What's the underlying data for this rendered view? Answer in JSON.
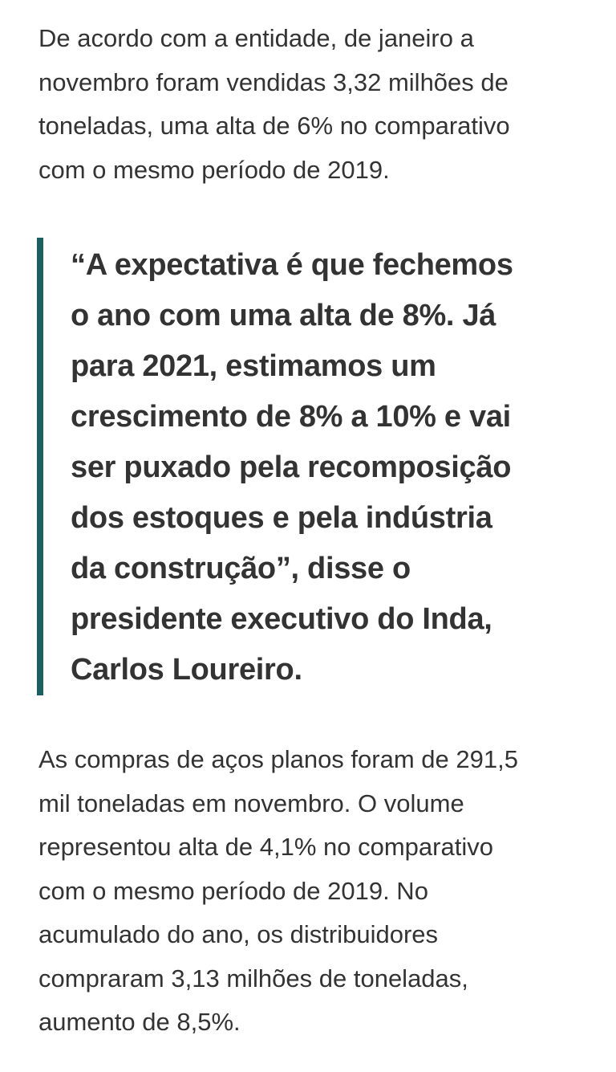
{
  "paragraphs": [
    {
      "lines": [
        "De acordo com a entidade, de janeiro a",
        "novembro foram vendidas 3,32 milhões de",
        "toneladas, uma alta de 6% no comparativo",
        "com o mesmo período de 2019."
      ]
    },
    {
      "lines": [
        "As compras de aços planos foram de 291,5",
        "mil toneladas em novembro. O volume",
        "representou alta de 4,1% no comparativo",
        "com o mesmo período de 2019. No",
        "acumulado do ano, os distribuidores",
        "compraram 3,13 milhões de toneladas,",
        "aumento de 8,5%."
      ]
    }
  ],
  "quote": {
    "lines": [
      "“A expectativa é que fechemos",
      "o ano com uma alta de 8%. Já",
      "para 2021, estimamos um",
      "crescimento de 8% a 10% e vai",
      "ser puxado pela recomposição",
      "dos estoques e pela indústria",
      "da construção”, disse o",
      "presidente executivo do Inda,",
      "Carlos Loureiro."
    ]
  }
}
